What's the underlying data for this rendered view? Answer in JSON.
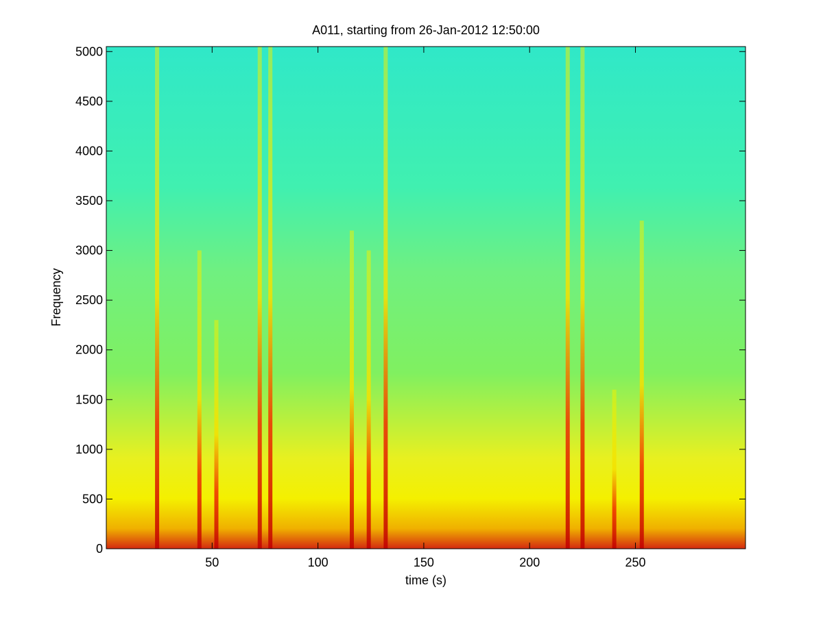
{
  "chart_data": {
    "type": "spectrogram",
    "title": "A011, starting from 26-Jan-2012 12:50:00",
    "x_label": "time (s)",
    "y_label": "Frequency",
    "xlim": [
      0,
      302
    ],
    "ylim": [
      0,
      5050
    ],
    "xticks": [
      50,
      100,
      150,
      200,
      250
    ],
    "yticks": [
      0,
      500,
      1000,
      1500,
      2000,
      2500,
      3000,
      3500,
      4000,
      4500,
      5000
    ],
    "stripes": {
      "x": [
        24,
        44,
        52,
        72.5,
        77.5,
        116,
        124,
        132,
        218,
        225,
        240,
        253
      ],
      "values": [
        5050,
        3000,
        2300,
        5050,
        5050,
        3200,
        3000,
        5050,
        5050,
        5050,
        1600,
        3300
      ]
    }
  }
}
